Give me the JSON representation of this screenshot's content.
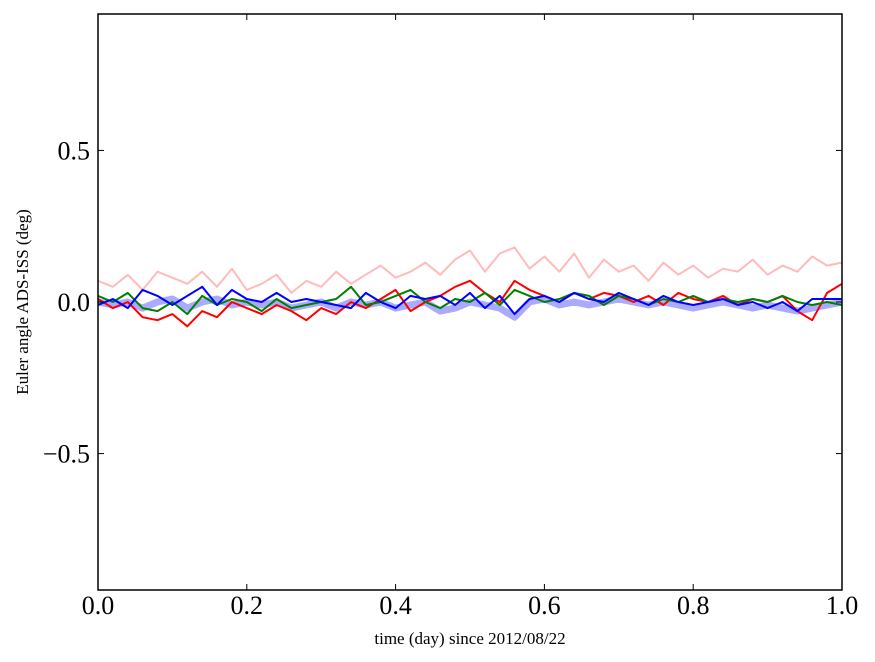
{
  "chart_data": {
    "type": "line",
    "title": "",
    "xlabel": "time (day) since 2012/08/22",
    "ylabel": "Euler angle ADS-ISS (deg)",
    "xlim": [
      0.0,
      1.0
    ],
    "ylim": [
      -0.95,
      0.95
    ],
    "x_ticks": [
      0.0,
      0.2,
      0.4,
      0.6,
      0.8,
      1.0
    ],
    "x_tick_labels": [
      "0.0",
      "0.2",
      "0.4",
      "0.6",
      "0.8",
      "1.0"
    ],
    "y_ticks": [
      0.5,
      0.0,
      -0.5
    ],
    "y_tick_labels": [
      "0.5",
      "0.0",
      "−0.5"
    ],
    "grid": false,
    "legend": "none",
    "x": [
      0.0,
      0.02,
      0.04,
      0.06,
      0.08,
      0.1,
      0.12,
      0.14,
      0.16,
      0.18,
      0.2,
      0.22,
      0.24,
      0.26,
      0.28,
      0.3,
      0.32,
      0.34,
      0.36,
      0.38,
      0.4,
      0.42,
      0.44,
      0.46,
      0.48,
      0.5,
      0.52,
      0.54,
      0.56,
      0.58,
      0.6,
      0.62,
      0.64,
      0.66,
      0.68,
      0.7,
      0.72,
      0.74,
      0.76,
      0.78,
      0.8,
      0.82,
      0.84,
      0.86,
      0.88,
      0.9,
      0.92,
      0.94,
      0.96,
      0.98,
      1.0
    ],
    "series": [
      {
        "color": "#ffbbbb",
        "width": 2,
        "values": [
          0.07,
          0.05,
          0.09,
          0.04,
          0.1,
          0.08,
          0.06,
          0.1,
          0.05,
          0.11,
          0.04,
          0.06,
          0.09,
          0.03,
          0.07,
          0.05,
          0.1,
          0.06,
          0.09,
          0.12,
          0.08,
          0.1,
          0.13,
          0.09,
          0.14,
          0.17,
          0.1,
          0.16,
          0.18,
          0.11,
          0.15,
          0.1,
          0.16,
          0.08,
          0.14,
          0.1,
          0.12,
          0.07,
          0.13,
          0.09,
          0.12,
          0.08,
          0.11,
          0.1,
          0.14,
          0.09,
          0.12,
          0.1,
          0.15,
          0.12,
          0.13
        ]
      },
      {
        "color": "#aaaaff",
        "width": 7,
        "values": [
          0.0,
          -0.01,
          0.0,
          -0.02,
          0.0,
          0.01,
          -0.02,
          0.0,
          0.01,
          -0.01,
          0.0,
          -0.01,
          0.0,
          -0.02,
          -0.01,
          0.0,
          -0.02,
          0.0,
          -0.01,
          0.0,
          -0.02,
          -0.01,
          0.0,
          -0.03,
          -0.02,
          0.0,
          -0.01,
          -0.02,
          -0.05,
          0.0,
          0.01,
          -0.01,
          0.0,
          -0.01,
          0.0,
          0.01,
          0.0,
          -0.01,
          0.0,
          -0.01,
          -0.02,
          -0.01,
          0.0,
          -0.01,
          -0.02,
          -0.01,
          -0.02,
          -0.03,
          -0.02,
          -0.01,
          0.0
        ]
      },
      {
        "color": "#ff0000",
        "width": 2,
        "values": [
          0.01,
          -0.02,
          0.0,
          -0.05,
          -0.06,
          -0.04,
          -0.08,
          -0.03,
          -0.05,
          0.0,
          -0.02,
          -0.04,
          -0.01,
          -0.03,
          -0.06,
          -0.02,
          -0.04,
          0.0,
          -0.02,
          0.01,
          0.04,
          -0.03,
          0.0,
          0.02,
          0.05,
          0.07,
          0.03,
          0.0,
          0.07,
          0.04,
          0.02,
          0.0,
          0.03,
          0.01,
          0.03,
          0.02,
          0.0,
          0.02,
          -0.01,
          0.03,
          0.01,
          0.0,
          0.02,
          -0.01,
          0.01,
          0.0,
          0.02,
          -0.03,
          -0.06,
          0.03,
          0.06
        ]
      },
      {
        "color": "#008000",
        "width": 2,
        "values": [
          0.02,
          0.0,
          0.03,
          -0.02,
          -0.03,
          0.0,
          -0.04,
          0.02,
          -0.01,
          0.01,
          0.0,
          -0.03,
          0.01,
          -0.02,
          -0.01,
          0.0,
          0.01,
          0.05,
          -0.01,
          0.0,
          0.02,
          0.04,
          0.0,
          -0.02,
          0.01,
          0.0,
          0.03,
          -0.01,
          0.04,
          0.02,
          0.0,
          0.01,
          0.03,
          0.02,
          -0.01,
          0.02,
          0.01,
          -0.01,
          0.01,
          0.0,
          0.02,
          0.0,
          0.01,
          0.0,
          0.01,
          0.0,
          0.02,
          0.0,
          -0.01,
          0.0,
          -0.01
        ]
      },
      {
        "color": "#0000ff",
        "width": 2,
        "values": [
          -0.01,
          0.01,
          -0.02,
          0.04,
          0.02,
          -0.01,
          0.02,
          0.05,
          -0.01,
          0.04,
          0.01,
          0.0,
          0.03,
          0.0,
          0.01,
          0.0,
          -0.01,
          -0.02,
          0.03,
          0.0,
          -0.02,
          0.02,
          0.01,
          0.02,
          -0.01,
          0.03,
          -0.02,
          0.02,
          -0.04,
          0.01,
          0.02,
          0.0,
          0.03,
          0.01,
          0.0,
          0.03,
          0.01,
          -0.01,
          0.02,
          0.0,
          -0.01,
          0.0,
          0.01,
          -0.01,
          0.0,
          -0.02,
          0.0,
          -0.03,
          0.01,
          0.01,
          0.01
        ]
      }
    ]
  }
}
